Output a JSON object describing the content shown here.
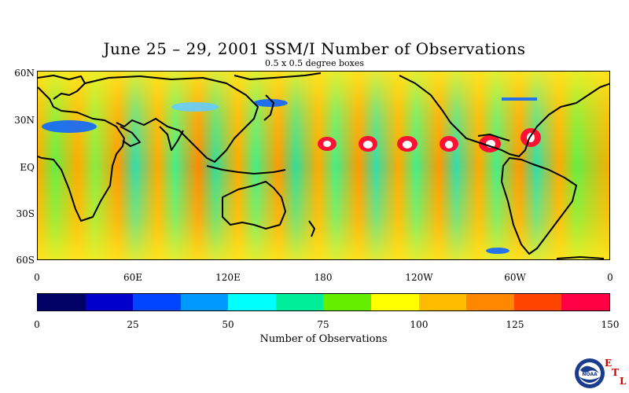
{
  "title": "June 25 – 29, 2001 SSM/I Number of Observations",
  "subtitle": "0.5 x 0.5 degree boxes",
  "map": {
    "lat_labels": [
      "60N",
      "30N",
      "EQ",
      "30S",
      "60S"
    ],
    "lon_labels": [
      "0",
      "60E",
      "120E",
      "180",
      "120W",
      "60W",
      "0"
    ]
  },
  "colorbar": {
    "colors": [
      "#000066",
      "#0000cc",
      "#0044ff",
      "#0099ff",
      "#00ffff",
      "#00ee99",
      "#66ee00",
      "#ffff00",
      "#ffbb00",
      "#ff8800",
      "#ff4400",
      "#ff0044"
    ],
    "tick_labels": [
      "0",
      "25",
      "50",
      "75",
      "100",
      "125",
      "150"
    ],
    "title": "Number of Observations",
    "range": [
      0,
      150
    ]
  },
  "logo": {
    "icon": "noaa-logo-icon",
    "text": "NOAA",
    "etl_letters": [
      "E",
      "T",
      "L"
    ]
  }
}
